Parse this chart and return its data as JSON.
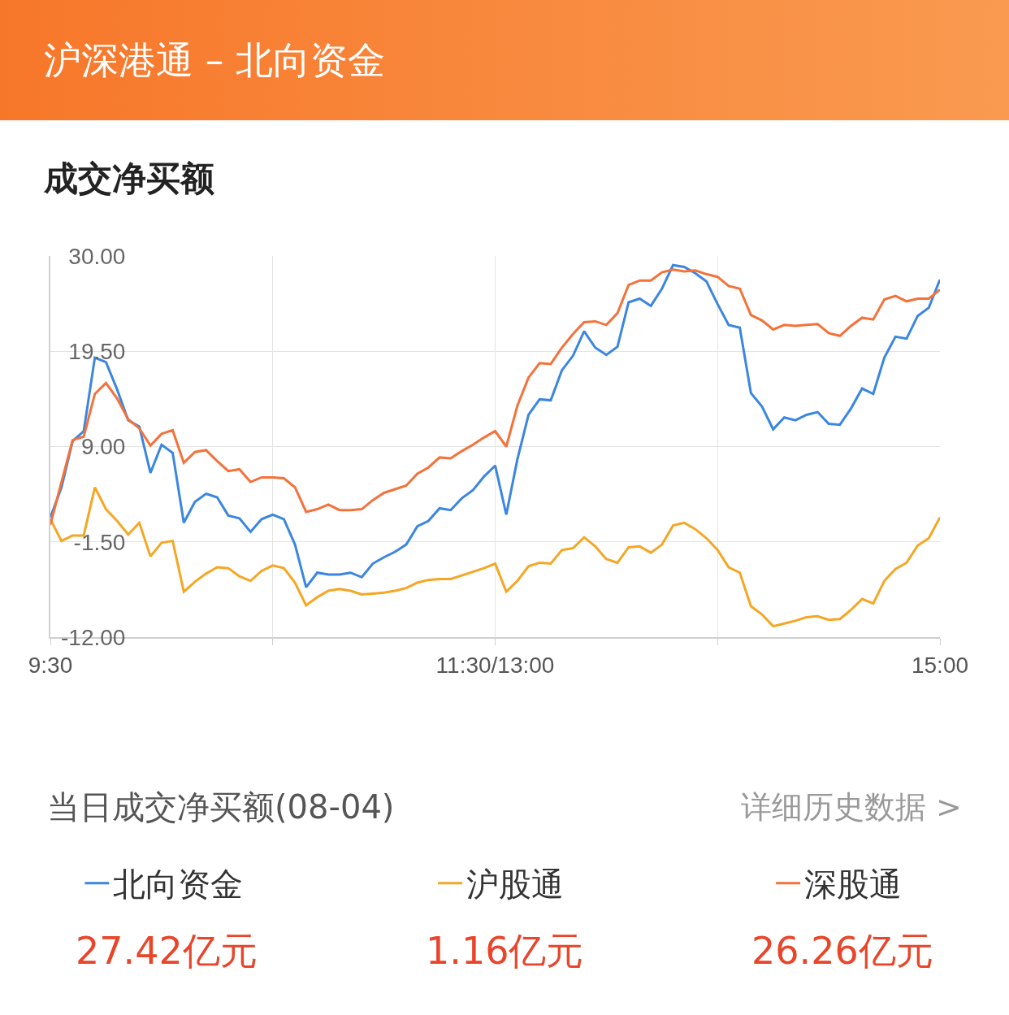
{
  "chart_data": {
    "type": "line",
    "title": "沪深港通 – 北向资金",
    "subtitle": "成交净买额",
    "categories": [
      "9:30",
      null,
      null,
      null,
      null,
      null,
      null,
      null,
      null,
      null,
      null,
      null,
      null,
      null,
      null,
      null,
      null,
      null,
      null,
      null,
      null,
      null,
      null,
      null,
      null,
      null,
      null,
      null,
      null,
      null,
      null,
      null,
      null,
      null,
      null,
      null,
      null,
      null,
      null,
      null,
      "11:30/13:00",
      null,
      null,
      null,
      null,
      null,
      null,
      null,
      null,
      null,
      null,
      null,
      null,
      null,
      null,
      null,
      null,
      null,
      null,
      null,
      null,
      null,
      null,
      null,
      null,
      null,
      null,
      null,
      null,
      null,
      null,
      null,
      null,
      null,
      null,
      null,
      null,
      null,
      null,
      null,
      "15:00"
    ],
    "ylim": [
      -12,
      30
    ],
    "yticks": [
      {
        "value": 30,
        "label": "30.00"
      },
      {
        "value": 19.5,
        "label": "19.50"
      },
      {
        "value": 9,
        "label": "9.00"
      },
      {
        "value": -1.5,
        "label": "-1.50"
      },
      {
        "value": -12,
        "label": "-12.00"
      }
    ],
    "grid": true,
    "legend": "bottom",
    "annotations": [
      "当日成交净买额(08-04)",
      "详细历史数据 >",
      "27.42亿元",
      "1.16亿元",
      "26.26亿元"
    ],
    "series": [
      {
        "name": "北向资金",
        "color": "#3a86e0",
        "values": [
          1.2,
          4.5,
          9.6,
          10.7,
          18.8,
          18.3,
          15.3,
          11.9,
          11.2,
          6.1,
          9.2,
          8.3,
          0.6,
          2.9,
          3.8,
          3.4,
          1.4,
          1.1,
          -0.4,
          1.0,
          1.5,
          1.0,
          -1.8,
          -6.5,
          -4.9,
          -5.1,
          -5.1,
          -4.9,
          -5.4,
          -3.9,
          -3.2,
          -2.6,
          -1.8,
          0.2,
          0.8,
          2.2,
          2.0,
          3.3,
          4.2,
          5.7,
          6.9,
          1.5,
          7.6,
          12.5,
          14.2,
          14.1,
          17.4,
          19.0,
          21.7,
          19.9,
          19.1,
          20.0,
          24.9,
          25.3,
          24.5,
          26.4,
          29.0,
          28.8,
          28.1,
          27.2,
          24.7,
          22.4,
          22.1,
          14.9,
          13.4,
          10.9,
          12.2,
          11.9,
          12.5,
          12.8,
          11.5,
          11.4,
          13.2,
          15.4,
          14.8,
          18.8,
          21.1,
          20.9,
          23.4,
          24.3,
          27.4
        ]
      },
      {
        "name": "沪股通",
        "color": "#f5a623",
        "values": [
          1.0,
          -1.4,
          -0.8,
          -0.8,
          4.5,
          2.1,
          0.8,
          -0.7,
          0.6,
          -3.1,
          -1.6,
          -1.4,
          -7.0,
          -5.9,
          -5.0,
          -4.3,
          -4.4,
          -5.3,
          -5.8,
          -4.7,
          -4.1,
          -4.4,
          -6.0,
          -8.5,
          -7.6,
          -6.9,
          -6.7,
          -6.9,
          -7.3,
          -7.2,
          -7.1,
          -6.9,
          -6.6,
          -6.0,
          -5.7,
          -5.6,
          -5.6,
          -5.2,
          -4.8,
          -4.4,
          -3.9,
          -7.0,
          -5.8,
          -4.2,
          -3.8,
          -3.9,
          -2.4,
          -2.2,
          -1.0,
          -2.0,
          -3.4,
          -3.8,
          -2.1,
          -2.0,
          -2.7,
          -1.8,
          0.3,
          0.6,
          -0.1,
          -1.1,
          -2.4,
          -4.3,
          -4.9,
          -8.6,
          -9.5,
          -10.8,
          -10.5,
          -10.2,
          -9.8,
          -9.7,
          -10.1,
          -10.0,
          -9.0,
          -7.8,
          -8.3,
          -5.8,
          -4.5,
          -3.8,
          -1.9,
          -1.1,
          1.2
        ]
      },
      {
        "name": "深股通",
        "color": "#f5713a",
        "values": [
          0.4,
          5.1,
          9.7,
          10.1,
          14.8,
          16.0,
          14.3,
          12.0,
          11.0,
          9.1,
          10.4,
          10.8,
          7.2,
          8.4,
          8.6,
          7.4,
          6.3,
          6.5,
          5.1,
          5.6,
          5.6,
          5.5,
          4.5,
          1.8,
          2.1,
          2.6,
          2.0,
          2.0,
          2.1,
          3.1,
          3.9,
          4.3,
          4.7,
          6.0,
          6.7,
          7.8,
          7.7,
          8.5,
          9.2,
          10.0,
          10.7,
          9.0,
          13.5,
          16.6,
          18.2,
          18.1,
          19.9,
          21.4,
          22.7,
          22.8,
          22.4,
          23.7,
          26.8,
          27.3,
          27.3,
          28.2,
          28.5,
          28.3,
          28.4,
          28.0,
          27.7,
          26.7,
          26.4,
          23.5,
          22.9,
          21.9,
          22.4,
          22.3,
          22.4,
          22.5,
          21.5,
          21.2,
          22.3,
          23.2,
          23.0,
          25.2,
          25.6,
          25.0,
          25.3,
          25.3,
          26.3
        ]
      }
    ]
  }
}
